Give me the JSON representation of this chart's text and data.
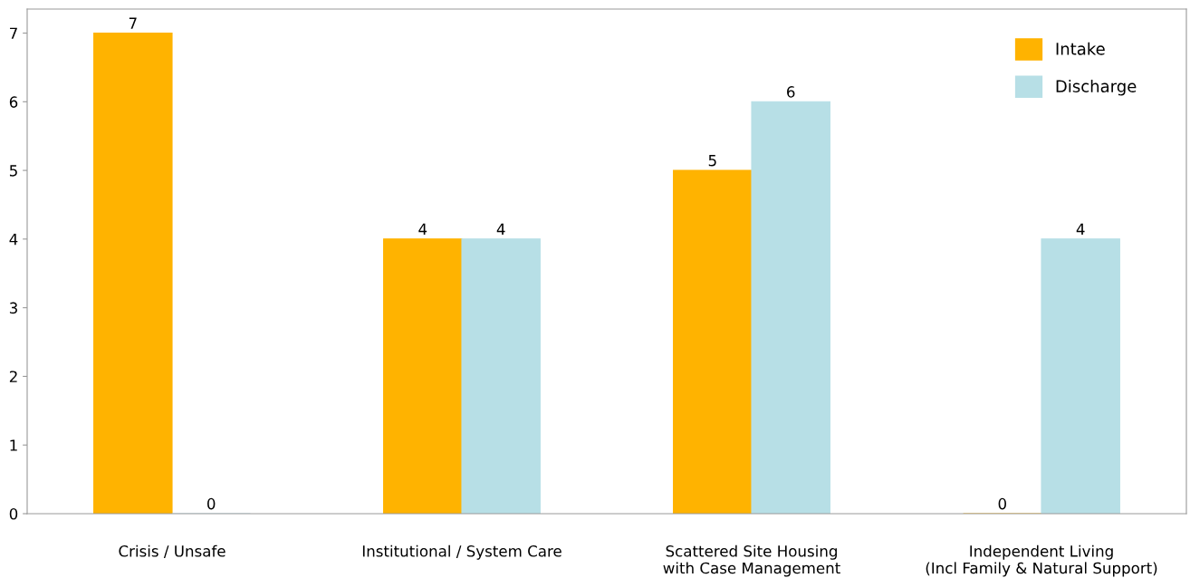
{
  "chart_data": {
    "type": "bar",
    "categories": [
      "Crisis / Unsafe",
      "Institutional / System Care",
      "Scattered Site Housing\nwith Case Management",
      "Independent Living\n(Incl Family & Natural Support)"
    ],
    "series": [
      {
        "name": "Intake",
        "color": "#ffb300",
        "values": [
          7,
          4,
          5,
          0
        ]
      },
      {
        "name": "Discharge",
        "color": "#b7dfe6",
        "values": [
          0,
          4,
          6,
          4
        ]
      }
    ],
    "ylim": [
      0,
      7.35
    ],
    "yticks": [
      0,
      1,
      2,
      3,
      4,
      5,
      6,
      7
    ],
    "data_labels": true,
    "legend": "top right",
    "grid": false
  }
}
